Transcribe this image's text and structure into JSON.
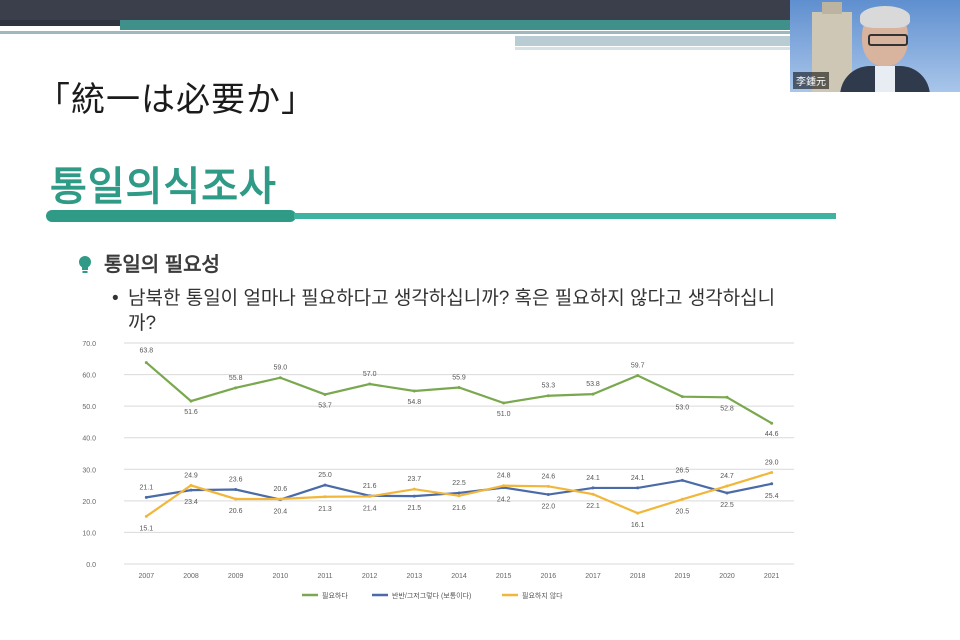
{
  "video": {
    "participant_name": "李鍾元"
  },
  "slide": {
    "title_jp": "「統一は必要か」",
    "title_kr": "통일의식조사",
    "section_heading": "통일의 필요성",
    "question_bullet": "•",
    "question": "남북한 통일이 얼마나 필요하다고 생각하십니까? 혹은 필요하지 않다고 생각하십니까?",
    "accent_color": "#2f9a86",
    "bulb_color": "#2f9a86"
  },
  "chart_data": {
    "type": "line",
    "categories": [
      "2007",
      "2008",
      "2009",
      "2010",
      "2011",
      "2012",
      "2013",
      "2014",
      "2015",
      "2016",
      "2017",
      "2018",
      "2019",
      "2020",
      "2021"
    ],
    "ylim": [
      0,
      70
    ],
    "yticks": [
      "0.0",
      "10.0",
      "20.0",
      "30.0",
      "40.0",
      "50.0",
      "60.0",
      "70.0"
    ],
    "grid": true,
    "legend_position": "bottom",
    "series": [
      {
        "name": "필요하다",
        "color": "#79a84f",
        "values": [
          63.8,
          51.6,
          55.8,
          59.0,
          53.7,
          57.0,
          54.8,
          55.9,
          51.0,
          53.3,
          53.8,
          59.7,
          53.0,
          52.8,
          44.6
        ],
        "labels": [
          "63.8",
          "51.6",
          "55.8",
          "59.0",
          "53.7",
          "57.0",
          "54.8",
          "55.9",
          "51.0",
          "53.3",
          "53.8",
          "59.7",
          "53.0",
          "52.8",
          "44.6"
        ]
      },
      {
        "name": "반반/그저그렇다 (보통이다)",
        "color": "#4a6aa8",
        "values": [
          21.1,
          23.4,
          23.6,
          20.4,
          25.0,
          21.6,
          21.5,
          22.5,
          24.2,
          22.0,
          24.1,
          24.1,
          26.5,
          22.5,
          25.4
        ],
        "labels": [
          "21.1",
          "23.4",
          "23.6",
          "20.4",
          "25.0",
          "21.6",
          "21.5",
          "22.5",
          "24.2",
          "22.0",
          "24.1",
          "24.1",
          "26.5",
          "22.5",
          "25.4"
        ]
      },
      {
        "name": "필요하지 않다",
        "color": "#f2b73a",
        "values": [
          15.1,
          24.9,
          20.6,
          20.6,
          21.3,
          21.4,
          23.7,
          21.6,
          24.8,
          24.6,
          22.1,
          16.1,
          20.5,
          24.7,
          29.0
        ],
        "labels": [
          "15.1",
          "24.9",
          "20.6",
          "20.6",
          "21.3",
          "21.4",
          "23.7",
          "21.6",
          "24.8",
          "24.6",
          "22.1",
          "16.1",
          "20.5",
          "24.7",
          "29.0"
        ]
      }
    ]
  }
}
